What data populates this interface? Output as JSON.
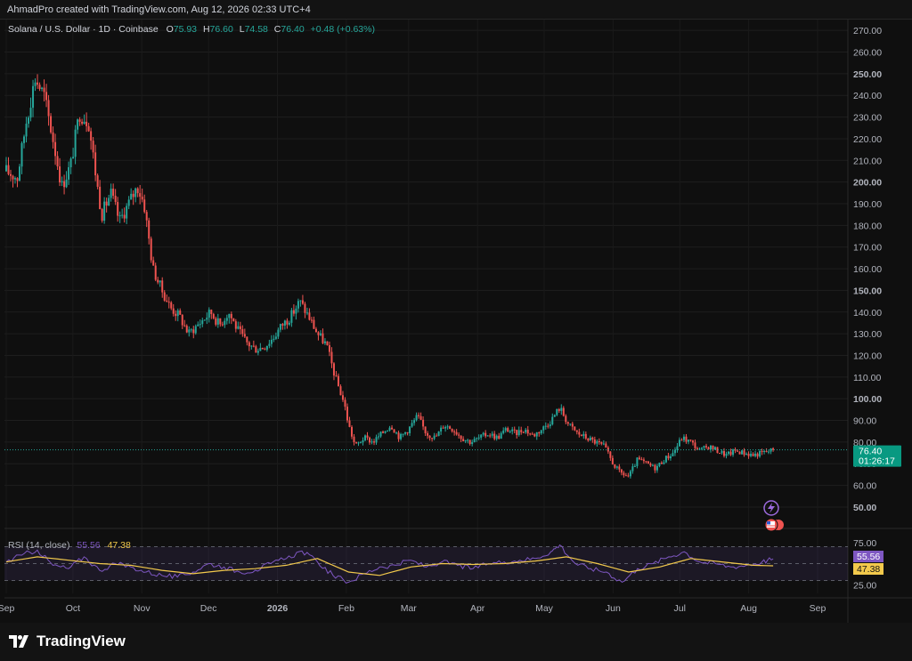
{
  "header": {
    "attribution": "AhmadPro created with TradingView.com, Aug 12, 2026 02:33 UTC+4"
  },
  "colors": {
    "up": "#26a69a",
    "down": "#ef5350",
    "rsi": "#7e57c2",
    "rsi_ma": "#f2c94c",
    "background": "#0f0f0f"
  },
  "legend": {
    "symbol": "Solana / U.S. Dollar · 1D · Coinbase",
    "o_label": "O",
    "o_value": "75.93",
    "h_label": "H",
    "h_value": "76.60",
    "l_label": "L",
    "l_value": "74.58",
    "c_label": "C",
    "c_value": "76.40",
    "change": "+0.48 (+0.63%)"
  },
  "rsi_legend": {
    "name": "RSI (14, close)",
    "rsi_value": "55.56",
    "ma_value": "47.38"
  },
  "price_badge": {
    "value": "76.40",
    "countdown": "01:26:17"
  },
  "rsi_badges": {
    "rsi": "55.56",
    "ma": "47.38"
  },
  "icons": {
    "flash": "lightning-icon",
    "flag": "us-flag-icon"
  },
  "footer": {
    "logo_text": "TradingView"
  },
  "chart_data": [
    {
      "type": "candlestick",
      "title": "Solana / U.S. Dollar · 1D · Coinbase",
      "y_ticks": [
        "270.00",
        "260.00",
        "250.00",
        "240.00",
        "230.00",
        "220.00",
        "210.00",
        "200.00",
        "190.00",
        "180.00",
        "170.00",
        "160.00",
        "150.00",
        "140.00",
        "130.00",
        "120.00",
        "110.00",
        "100.00",
        "90.00",
        "80.00",
        "70.00",
        "60.00",
        "50.00"
      ],
      "ylim": [
        43,
        275
      ],
      "x_ticks": [
        "Sep",
        "Oct",
        "Nov",
        "Dec",
        "2026",
        "Feb",
        "Mar",
        "Apr",
        "May",
        "Jun",
        "Jul",
        "Aug",
        "Sep"
      ],
      "last_price": 76.4,
      "close_path": [
        [
          "2025-09-01",
          205
        ],
        [
          "2025-09-06",
          202
        ],
        [
          "2025-09-10",
          228
        ],
        [
          "2025-09-14",
          248
        ],
        [
          "2025-09-18",
          240
        ],
        [
          "2025-09-22",
          220
        ],
        [
          "2025-09-26",
          198
        ],
        [
          "2025-09-30",
          208
        ],
        [
          "2025-10-04",
          232
        ],
        [
          "2025-10-08",
          228
        ],
        [
          "2025-10-12",
          198
        ],
        [
          "2025-10-14",
          185
        ],
        [
          "2025-10-18",
          195
        ],
        [
          "2025-10-22",
          182
        ],
        [
          "2025-10-26",
          190
        ],
        [
          "2025-10-30",
          198
        ],
        [
          "2025-11-02",
          190
        ],
        [
          "2025-11-06",
          160
        ],
        [
          "2025-11-10",
          150
        ],
        [
          "2025-11-14",
          142
        ],
        [
          "2025-11-18",
          138
        ],
        [
          "2025-11-22",
          130
        ],
        [
          "2025-11-28",
          136
        ],
        [
          "2025-12-02",
          140
        ],
        [
          "2025-12-06",
          134
        ],
        [
          "2025-12-10",
          140
        ],
        [
          "2025-12-14",
          132
        ],
        [
          "2025-12-18",
          126
        ],
        [
          "2025-12-22",
          123
        ],
        [
          "2025-12-26",
          124
        ],
        [
          "2025-12-30",
          128
        ],
        [
          "2026-01-03",
          134
        ],
        [
          "2026-01-07",
          138
        ],
        [
          "2026-01-11",
          145
        ],
        [
          "2026-01-15",
          138
        ],
        [
          "2026-01-19",
          130
        ],
        [
          "2026-01-23",
          125
        ],
        [
          "2026-01-27",
          110
        ],
        [
          "2026-01-31",
          98
        ],
        [
          "2026-02-02",
          88
        ],
        [
          "2026-02-05",
          78
        ],
        [
          "2026-02-09",
          82
        ],
        [
          "2026-02-13",
          80
        ],
        [
          "2026-02-17",
          84
        ],
        [
          "2026-02-21",
          88
        ],
        [
          "2026-02-25",
          82
        ],
        [
          "2026-03-01",
          86
        ],
        [
          "2026-03-05",
          92
        ],
        [
          "2026-03-09",
          84
        ],
        [
          "2026-03-13",
          82
        ],
        [
          "2026-03-17",
          88
        ],
        [
          "2026-03-21",
          86
        ],
        [
          "2026-03-25",
          82
        ],
        [
          "2026-03-29",
          80
        ],
        [
          "2026-04-02",
          82
        ],
        [
          "2026-04-06",
          84
        ],
        [
          "2026-04-10",
          82
        ],
        [
          "2026-04-14",
          86
        ],
        [
          "2026-04-18",
          84
        ],
        [
          "2026-04-22",
          86
        ],
        [
          "2026-04-26",
          83
        ],
        [
          "2026-04-30",
          86
        ],
        [
          "2026-05-04",
          90
        ],
        [
          "2026-05-08",
          96
        ],
        [
          "2026-05-12",
          88
        ],
        [
          "2026-05-16",
          84
        ],
        [
          "2026-05-20",
          82
        ],
        [
          "2026-05-24",
          80
        ],
        [
          "2026-05-28",
          78
        ],
        [
          "2026-06-01",
          70
        ],
        [
          "2026-06-04",
          66
        ],
        [
          "2026-06-08",
          64
        ],
        [
          "2026-06-12",
          72
        ],
        [
          "2026-06-16",
          70
        ],
        [
          "2026-06-20",
          68
        ],
        [
          "2026-06-24",
          72
        ],
        [
          "2026-06-28",
          75
        ],
        [
          "2026-07-02",
          82
        ],
        [
          "2026-07-06",
          80
        ],
        [
          "2026-07-10",
          76
        ],
        [
          "2026-07-14",
          78
        ],
        [
          "2026-07-18",
          76
        ],
        [
          "2026-07-22",
          74
        ],
        [
          "2026-07-26",
          76
        ],
        [
          "2026-07-30",
          75
        ],
        [
          "2026-08-03",
          74
        ],
        [
          "2026-08-07",
          75
        ],
        [
          "2026-08-12",
          76.4
        ]
      ]
    },
    {
      "type": "line",
      "title": "RSI (14, close)",
      "y_ticks": [
        "75.00",
        "25.00"
      ],
      "ylim": [
        20,
        80
      ],
      "bands": [
        30,
        50,
        70
      ],
      "series": [
        {
          "name": "RSI (14, close)",
          "points": [
            [
              "2025-09-01",
              52
            ],
            [
              "2025-09-08",
              60
            ],
            [
              "2025-09-15",
              66
            ],
            [
              "2025-09-22",
              48
            ],
            [
              "2025-09-29",
              44
            ],
            [
              "2025-10-06",
              58
            ],
            [
              "2025-10-13",
              42
            ],
            [
              "2025-10-20",
              50
            ],
            [
              "2025-10-27",
              46
            ],
            [
              "2025-11-03",
              40
            ],
            [
              "2025-11-10",
              36
            ],
            [
              "2025-11-17",
              34
            ],
            [
              "2025-11-24",
              40
            ],
            [
              "2025-12-01",
              50
            ],
            [
              "2025-12-08",
              46
            ],
            [
              "2025-12-15",
              40
            ],
            [
              "2025-12-22",
              42
            ],
            [
              "2025-12-29",
              50
            ],
            [
              "2026-01-05",
              56
            ],
            [
              "2026-01-12",
              65
            ],
            [
              "2026-01-19",
              52
            ],
            [
              "2026-01-26",
              36
            ],
            [
              "2026-02-02",
              28
            ],
            [
              "2026-02-09",
              38
            ],
            [
              "2026-02-16",
              46
            ],
            [
              "2026-02-23",
              48
            ],
            [
              "2026-03-02",
              54
            ],
            [
              "2026-03-09",
              46
            ],
            [
              "2026-03-16",
              52
            ],
            [
              "2026-03-23",
              48
            ],
            [
              "2026-03-30",
              44
            ],
            [
              "2026-04-06",
              50
            ],
            [
              "2026-04-13",
              52
            ],
            [
              "2026-04-20",
              54
            ],
            [
              "2026-04-27",
              56
            ],
            [
              "2026-05-04",
              64
            ],
            [
              "2026-05-08",
              72
            ],
            [
              "2026-05-15",
              50
            ],
            [
              "2026-05-22",
              44
            ],
            [
              "2026-05-29",
              40
            ],
            [
              "2026-06-05",
              28
            ],
            [
              "2026-06-12",
              44
            ],
            [
              "2026-06-19",
              50
            ],
            [
              "2026-06-26",
              58
            ],
            [
              "2026-07-03",
              64
            ],
            [
              "2026-07-10",
              52
            ],
            [
              "2026-07-17",
              50
            ],
            [
              "2026-07-24",
              46
            ],
            [
              "2026-07-31",
              48
            ],
            [
              "2026-08-07",
              52
            ],
            [
              "2026-08-12",
              55.56
            ]
          ]
        },
        {
          "name": "RSI-based MA",
          "points": [
            [
              "2025-09-01",
              52
            ],
            [
              "2025-09-15",
              58
            ],
            [
              "2025-09-29",
              54
            ],
            [
              "2025-10-13",
              50
            ],
            [
              "2025-10-27",
              48
            ],
            [
              "2025-11-10",
              42
            ],
            [
              "2025-11-24",
              38
            ],
            [
              "2025-12-08",
              42
            ],
            [
              "2025-12-22",
              44
            ],
            [
              "2026-01-05",
              48
            ],
            [
              "2026-01-19",
              56
            ],
            [
              "2026-02-02",
              40
            ],
            [
              "2026-02-16",
              36
            ],
            [
              "2026-03-02",
              46
            ],
            [
              "2026-03-16",
              50
            ],
            [
              "2026-03-30",
              49
            ],
            [
              "2026-04-13",
              50
            ],
            [
              "2026-04-27",
              53
            ],
            [
              "2026-05-11",
              58
            ],
            [
              "2026-05-25",
              50
            ],
            [
              "2026-06-08",
              40
            ],
            [
              "2026-06-22",
              46
            ],
            [
              "2026-07-06",
              56
            ],
            [
              "2026-07-20",
              52
            ],
            [
              "2026-08-03",
              48
            ],
            [
              "2026-08-12",
              47.38
            ]
          ]
        }
      ]
    }
  ]
}
